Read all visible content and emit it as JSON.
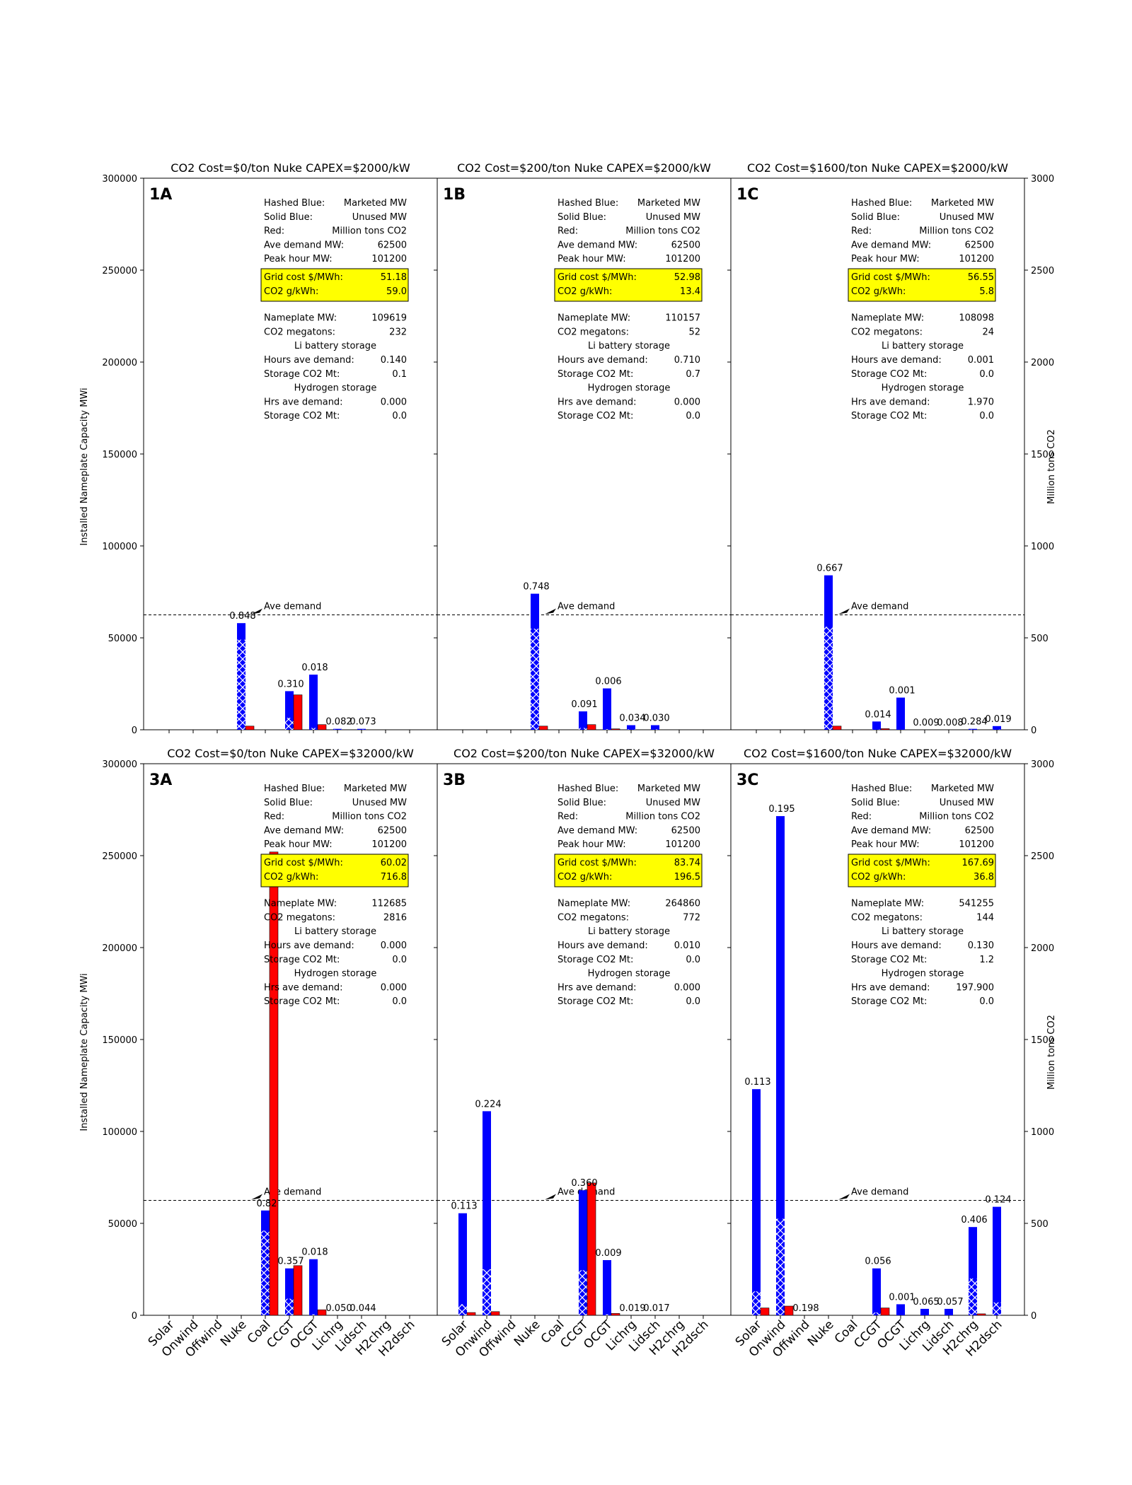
{
  "colors": {
    "blue": "#0000ff",
    "red": "#ff0000",
    "highlight": "#ffff00",
    "hatch": "#ffffff"
  },
  "legend_lines": [
    [
      "Hashed Blue:",
      "Marketed MW"
    ],
    [
      "Solid Blue:",
      "Unused MW"
    ],
    [
      "Red:",
      "Million tons CO2"
    ]
  ],
  "labels": {
    "ave_demand_mw": "Ave demand MW:",
    "peak_hour_mw": "Peak hour MW:",
    "grid_cost": "Grid cost $/MWh:",
    "co2_gkwh": "CO2 g/kWh:",
    "nameplate_mw": "Nameplate MW:",
    "co2_megatons": "CO2 megatons:",
    "li_header": "Li battery storage",
    "hours_ave_demand": "Hours ave demand:",
    "storage_co2": "Storage CO2 Mt:",
    "h2_header": "Hydrogen storage",
    "hrs_ave_demand": "Hrs ave demand:",
    "ave_demand_annotation": "Ave demand"
  },
  "chart_data": {
    "type": "bar",
    "categories": [
      "Solar",
      "Onwind",
      "Offwind",
      "Nuke",
      "Coal",
      "CCGT",
      "OCGT",
      "Lichrg",
      "Lidsch",
      "H2chrg",
      "H2dsch"
    ],
    "ylabel": "Installed Nameplate Capacity MWi",
    "y2label": "Million tons CO2",
    "ylim": [
      0,
      300000
    ],
    "y2lim": [
      0,
      3000
    ],
    "yticks": [
      "0",
      "50000",
      "100000",
      "150000",
      "200000",
      "250000",
      "300000"
    ],
    "y2ticks": [
      "0",
      "500",
      "1000",
      "1500",
      "2000",
      "2500",
      "3000"
    ],
    "ave_demand_line": 62500,
    "panels": [
      {
        "id": "1A",
        "title": "CO2 Cost=$0/ton  Nuke CAPEX=$2000/kW",
        "stats": {
          "ave_demand_mw": "62500",
          "peak_hour_mw": "101200",
          "grid_cost": "51.18",
          "co2_gkwh": "59.0",
          "nameplate_mw": "109619",
          "co2_megatons": "232",
          "li_hours": "0.140",
          "li_co2": "0.1",
          "h2_hours": "0.000",
          "h2_co2": "0.0"
        },
        "bars": [
          {
            "cat": "Nuke",
            "marketed": 49000,
            "total": 58000,
            "co2": 20,
            "label": "0.848"
          },
          {
            "cat": "CCGT",
            "marketed": 6500,
            "total": 21000,
            "co2": 190,
            "label": "0.310"
          },
          {
            "cat": "OCGT",
            "marketed": 1000,
            "total": 30000,
            "co2": 28,
            "label": "0.018"
          },
          {
            "cat": "Lichrg",
            "marketed": 100,
            "total": 500,
            "co2": 0,
            "label": "0.082"
          },
          {
            "cat": "Lidsch",
            "marketed": 100,
            "total": 500,
            "co2": 0,
            "label": "0.073"
          }
        ]
      },
      {
        "id": "1B",
        "title": "CO2 Cost=$200/ton  Nuke CAPEX=$2000/kW",
        "stats": {
          "ave_demand_mw": "62500",
          "peak_hour_mw": "101200",
          "grid_cost": "52.98",
          "co2_gkwh": "13.4",
          "nameplate_mw": "110157",
          "co2_megatons": "52",
          "li_hours": "0.710",
          "li_co2": "0.7",
          "h2_hours": "0.000",
          "h2_co2": "0.0"
        },
        "bars": [
          {
            "cat": "Nuke",
            "marketed": 55000,
            "total": 74000,
            "co2": 20,
            "label": "0.748"
          },
          {
            "cat": "CCGT",
            "marketed": 1000,
            "total": 10000,
            "co2": 28,
            "label": "0.091"
          },
          {
            "cat": "OCGT",
            "marketed": 300,
            "total": 22500,
            "co2": 5,
            "label": "0.006"
          },
          {
            "cat": "Lichrg",
            "marketed": 200,
            "total": 2500,
            "co2": 0,
            "label": "0.034"
          },
          {
            "cat": "Lidsch",
            "marketed": 200,
            "total": 2500,
            "co2": 0,
            "label": "0.030"
          }
        ]
      },
      {
        "id": "1C",
        "title": "CO2 Cost=$1600/ton  Nuke CAPEX=$2000/kW",
        "stats": {
          "ave_demand_mw": "62500",
          "peak_hour_mw": "101200",
          "grid_cost": "56.55",
          "co2_gkwh": "5.8",
          "nameplate_mw": "108098",
          "co2_megatons": "24",
          "li_hours": "0.001",
          "li_co2": "0.0",
          "h2_hours": "1.970",
          "h2_co2": "0.0"
        },
        "bars": [
          {
            "cat": "Nuke",
            "marketed": 56000,
            "total": 84000,
            "co2": 20,
            "label": "0.667"
          },
          {
            "cat": "CCGT",
            "marketed": 100,
            "total": 4500,
            "co2": 6,
            "label": "0.014"
          },
          {
            "cat": "OCGT",
            "marketed": 0,
            "total": 17500,
            "co2": 0,
            "label": "0.001"
          },
          {
            "cat": "Lichrg",
            "marketed": 0,
            "total": 0,
            "co2": 0,
            "label": "0.009"
          },
          {
            "cat": "Lidsch",
            "marketed": 0,
            "total": 0,
            "co2": 0,
            "label": "0.008"
          },
          {
            "cat": "H2chrg",
            "marketed": 100,
            "total": 500,
            "co2": 0,
            "label": "0.284"
          },
          {
            "cat": "H2dsch",
            "marketed": 100,
            "total": 2000,
            "co2": 0,
            "label": "0.019"
          }
        ]
      },
      {
        "id": "3A",
        "title": "CO2 Cost=$0/ton  Nuke CAPEX=$32000/kW",
        "stats": {
          "ave_demand_mw": "62500",
          "peak_hour_mw": "101200",
          "grid_cost": "60.02",
          "co2_gkwh": "716.8",
          "nameplate_mw": "112685",
          "co2_megatons": "2816",
          "li_hours": "0.000",
          "li_co2": "0.0",
          "h2_hours": "0.000",
          "h2_co2": "0.0"
        },
        "bars": [
          {
            "cat": "Coal",
            "marketed": 46000,
            "total": 57000,
            "co2": 2520,
            "label": "0.82"
          },
          {
            "cat": "CCGT",
            "marketed": 9000,
            "total": 25500,
            "co2": 270,
            "label": "0.357"
          },
          {
            "cat": "OCGT",
            "marketed": 500,
            "total": 30500,
            "co2": 30,
            "label": "0.018"
          },
          {
            "cat": "Lichrg",
            "marketed": 0,
            "total": 0,
            "co2": 0,
            "label": "0.050"
          },
          {
            "cat": "Lidsch",
            "marketed": 0,
            "total": 0,
            "co2": 0,
            "label": "0.044"
          }
        ]
      },
      {
        "id": "3B",
        "title": "CO2 Cost=$200/ton  Nuke CAPEX=$32000/kW",
        "stats": {
          "ave_demand_mw": "62500",
          "peak_hour_mw": "101200",
          "grid_cost": "83.74",
          "co2_gkwh": "196.5",
          "nameplate_mw": "264860",
          "co2_megatons": "772",
          "li_hours": "0.010",
          "li_co2": "0.0",
          "h2_hours": "0.000",
          "h2_co2": "0.0"
        },
        "bars": [
          {
            "cat": "Solar",
            "marketed": 6000,
            "total": 55500,
            "co2": 15,
            "label": "0.113"
          },
          {
            "cat": "Onwind",
            "marketed": 25000,
            "total": 111000,
            "co2": 20,
            "label": "0.224"
          },
          {
            "cat": "CCGT",
            "marketed": 24500,
            "total": 68000,
            "co2": 720,
            "label": "0.360"
          },
          {
            "cat": "OCGT",
            "marketed": 500,
            "total": 30000,
            "co2": 10,
            "label": "0.009"
          },
          {
            "cat": "Lichrg",
            "marketed": 0,
            "total": 0,
            "co2": 0,
            "label": "0.019"
          },
          {
            "cat": "Lidsch",
            "marketed": 0,
            "total": 0,
            "co2": 0,
            "label": "0.017"
          }
        ]
      },
      {
        "id": "3C",
        "title": "CO2 Cost=$1600/ton  Nuke CAPEX=$32000/kW",
        "stats": {
          "ave_demand_mw": "62500",
          "peak_hour_mw": "101200",
          "grid_cost": "167.69",
          "co2_gkwh": "36.8",
          "nameplate_mw": "541255",
          "co2_megatons": "144",
          "li_hours": "0.130",
          "li_co2": "1.2",
          "h2_hours": "197.900",
          "h2_co2": "0.0"
        },
        "bars": [
          {
            "cat": "Solar",
            "marketed": 13000,
            "total": 123000,
            "co2": 40,
            "label": "0.113"
          },
          {
            "cat": "Onwind",
            "marketed": 52500,
            "total": 271500,
            "co2": 50,
            "label": "0.195"
          },
          {
            "cat": "Offwind",
            "marketed": 0,
            "total": 0,
            "co2": 0,
            "label": "0.198"
          },
          {
            "cat": "CCGT",
            "marketed": 1500,
            "total": 25500,
            "co2": 40,
            "label": "0.056"
          },
          {
            "cat": "OCGT",
            "marketed": 0,
            "total": 6000,
            "co2": 0,
            "label": "0.001"
          },
          {
            "cat": "Lichrg",
            "marketed": 0,
            "total": 3500,
            "co2": 0,
            "label": "0.065"
          },
          {
            "cat": "Lidsch",
            "marketed": 0,
            "total": 3500,
            "co2": 0,
            "label": "0.057"
          },
          {
            "cat": "H2chrg",
            "marketed": 20000,
            "total": 48000,
            "co2": 8,
            "label": "0.406"
          },
          {
            "cat": "H2dsch",
            "marketed": 7000,
            "total": 59000,
            "co2": 0,
            "label": "0.124"
          }
        ]
      }
    ]
  }
}
